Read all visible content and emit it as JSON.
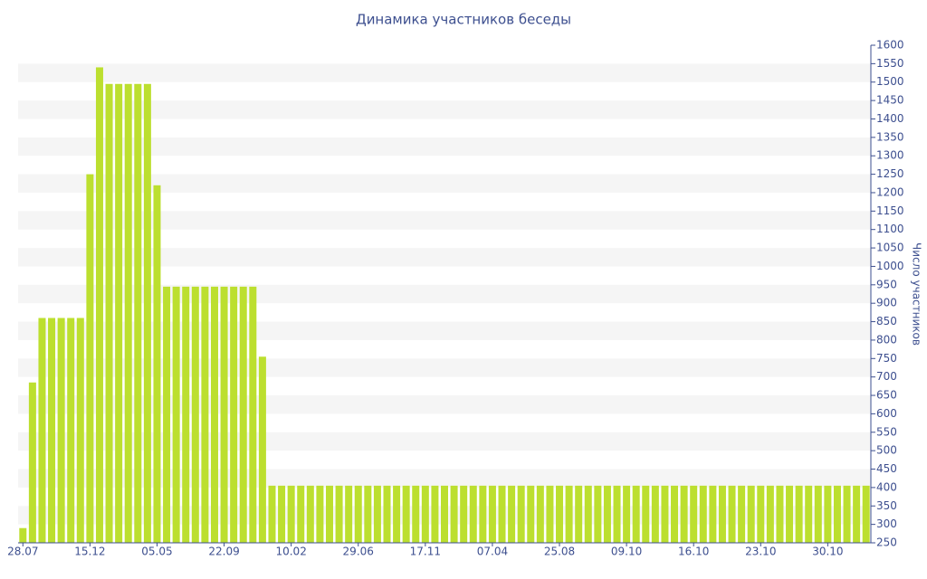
{
  "chart_data": {
    "type": "bar",
    "title": "Динамика участников беседы",
    "y_axis_label": "Число участников",
    "categories": [
      "28.07",
      null,
      null,
      null,
      null,
      null,
      null,
      "15.12",
      null,
      null,
      null,
      null,
      null,
      null,
      "05.05",
      null,
      null,
      null,
      null,
      null,
      null,
      "22.09",
      null,
      null,
      null,
      null,
      null,
      null,
      "10.02",
      null,
      null,
      null,
      null,
      null,
      null,
      "29.06",
      null,
      null,
      null,
      null,
      null,
      null,
      "17.11",
      null,
      null,
      null,
      null,
      null,
      null,
      "07.04",
      null,
      null,
      null,
      null,
      null,
      null,
      "25.08",
      null,
      null,
      null,
      null,
      null,
      null,
      "09.10",
      null,
      null,
      null,
      null,
      null,
      null,
      "16.10",
      null,
      null,
      null,
      null,
      null,
      null,
      "23.10",
      null,
      null,
      null,
      null,
      null,
      null,
      "30.10",
      null,
      null,
      null,
      null
    ],
    "values": [
      290,
      685,
      860,
      860,
      860,
      860,
      860,
      1250,
      1540,
      1495,
      1495,
      1495,
      1495,
      1495,
      1220,
      945,
      945,
      945,
      945,
      945,
      945,
      945,
      945,
      945,
      945,
      755,
      405,
      405,
      405,
      405,
      405,
      405,
      405,
      405,
      405,
      405,
      405,
      405,
      405,
      405,
      405,
      405,
      405,
      405,
      405,
      405,
      405,
      405,
      405,
      405,
      405,
      405,
      405,
      405,
      405,
      405,
      405,
      405,
      405,
      405,
      405,
      405,
      405,
      405,
      405,
      405,
      405,
      405,
      405,
      405,
      405,
      405,
      405,
      405,
      405,
      405,
      405,
      405,
      405,
      405,
      405,
      405,
      405,
      405,
      405,
      405,
      405,
      405,
      405
    ],
    "color": "#bcdf2f",
    "ylim": [
      250,
      1600
    ],
    "yticks": [
      250,
      300,
      350,
      400,
      450,
      500,
      550,
      600,
      650,
      700,
      750,
      800,
      850,
      900,
      950,
      1000,
      1050,
      1100,
      1150,
      1200,
      1250,
      1300,
      1350,
      1400,
      1450,
      1500,
      1550,
      1600
    ],
    "grid": true
  }
}
